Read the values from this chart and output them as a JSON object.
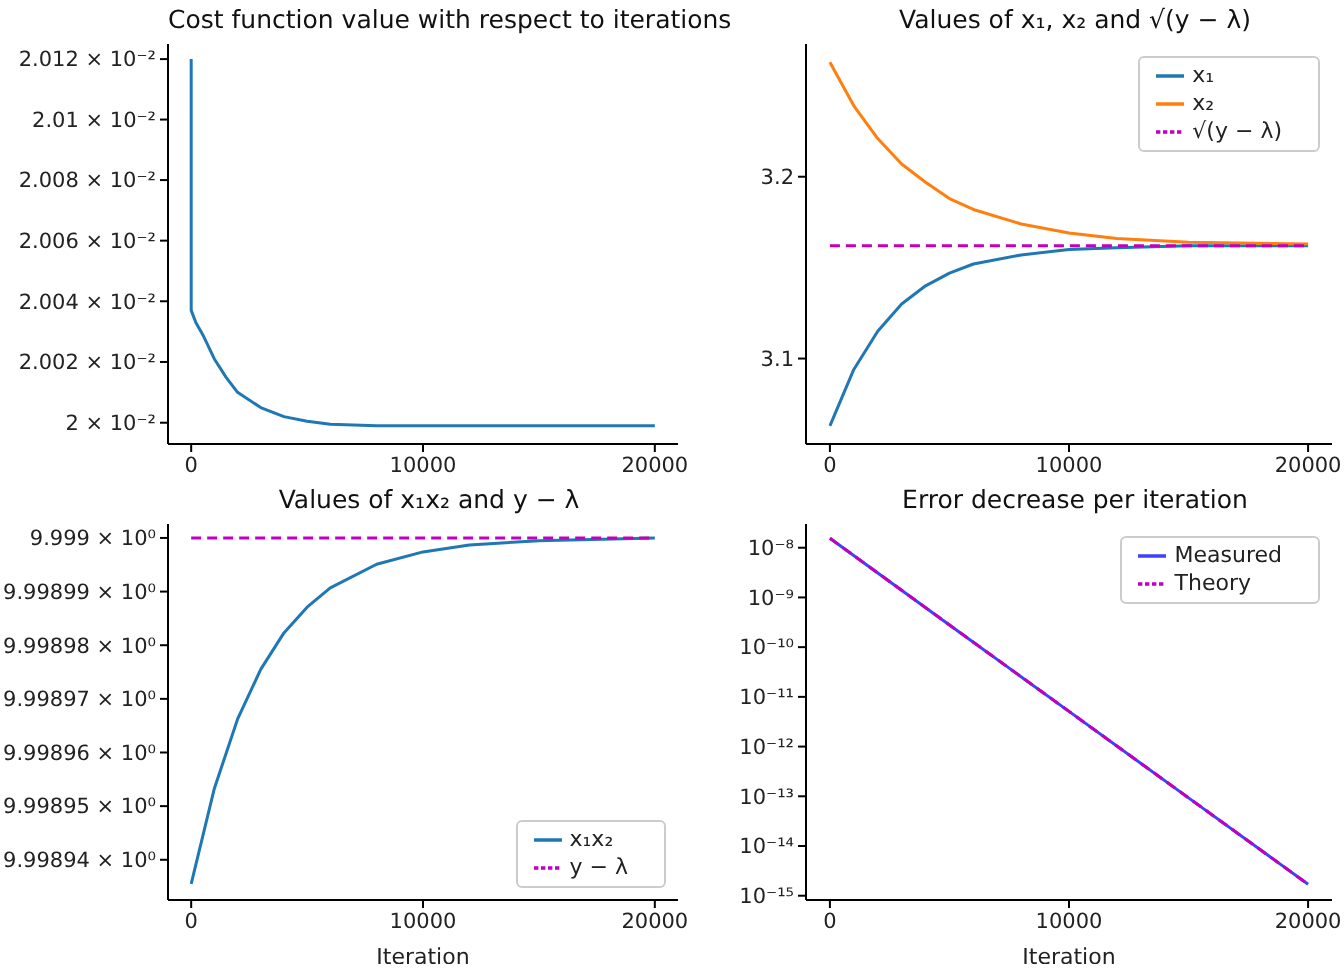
{
  "chart_data": [
    {
      "type": "line",
      "title": "Cost function value with respect to iterations",
      "log": "y",
      "xlim": [
        -1000,
        21000
      ],
      "xticks": [
        0,
        10000,
        20000
      ],
      "ylim": [
        0.019993,
        0.020125
      ],
      "yticks": [
        {
          "value": 0.02,
          "label": "2 × 10⁻²"
        },
        {
          "value": 0.02002,
          "label": "2.002 × 10⁻²"
        },
        {
          "value": 0.02004,
          "label": "2.004 × 10⁻²"
        },
        {
          "value": 0.02006,
          "label": "2.006 × 10⁻²"
        },
        {
          "value": 0.02008,
          "label": "2.008 × 10⁻²"
        },
        {
          "value": 0.0201,
          "label": "2.01 × 10⁻²"
        },
        {
          "value": 0.02012,
          "label": "2.012 × 10⁻²"
        }
      ],
      "x": [
        0,
        1,
        200,
        500,
        1000,
        1500,
        2000,
        3000,
        4000,
        5000,
        6000,
        8000,
        10000,
        15000,
        20000
      ],
      "series": [
        {
          "color": "#1f77b4",
          "values": [
            0.02012,
            0.020037,
            0.020033,
            0.020029,
            0.020021,
            0.020015,
            0.02001,
            0.020005,
            0.020002,
            0.0200005,
            0.0199995,
            0.019999,
            0.019999,
            0.019999,
            0.019999
          ]
        }
      ]
    },
    {
      "type": "line",
      "title": "Values of x₁, x₂ and √(y − λ)",
      "legend": "top right",
      "xlim": [
        -1000,
        21000
      ],
      "xticks": [
        0,
        10000,
        20000
      ],
      "ylim": [
        3.053,
        3.273
      ],
      "yticks": [
        3.1,
        3.2
      ],
      "x": [
        0,
        1000,
        2000,
        3000,
        4000,
        5000,
        6000,
        8000,
        10000,
        12000,
        15000,
        20000
      ],
      "series": [
        {
          "name": "x₁",
          "color": "#1f77b4",
          "values": [
            3.063,
            3.094,
            3.115,
            3.13,
            3.14,
            3.147,
            3.152,
            3.157,
            3.16,
            3.161,
            3.162,
            3.162
          ]
        },
        {
          "name": "x₂",
          "color": "#ff7f0e",
          "values": [
            3.263,
            3.239,
            3.221,
            3.207,
            3.197,
            3.188,
            3.182,
            3.174,
            3.169,
            3.166,
            3.164,
            3.163
          ]
        },
        {
          "name": "√(y − λ)",
          "color": "#bf00bf",
          "line_style": "dashed",
          "values": [
            3.162,
            3.162,
            3.162,
            3.162,
            3.162,
            3.162,
            3.162,
            3.162,
            3.162,
            3.162,
            3.162,
            3.162
          ]
        }
      ]
    },
    {
      "type": "line",
      "title": "Values of x₁x₂ and y − λ",
      "xlabel": "Iteration",
      "legend": "bottom right",
      "log": "y",
      "xlim": [
        -1000,
        21000
      ],
      "xticks": [
        0,
        10000,
        20000
      ],
      "ylim": [
        9.9989325,
        9.9990026
      ],
      "yticks": [
        {
          "value": 9.99894,
          "label": "9.99894 × 10⁰"
        },
        {
          "value": 9.99895,
          "label": "9.99895 × 10⁰"
        },
        {
          "value": 9.99896,
          "label": "9.99896 × 10⁰"
        },
        {
          "value": 9.99897,
          "label": "9.99897 × 10⁰"
        },
        {
          "value": 9.99898,
          "label": "9.99898 × 10⁰"
        },
        {
          "value": 9.99899,
          "label": "9.99899 × 10⁰"
        },
        {
          "value": 9.999,
          "label": "9.999 × 10⁰"
        }
      ],
      "x": [
        0,
        1000,
        2000,
        3000,
        4000,
        5000,
        6000,
        8000,
        10000,
        12000,
        15000,
        20000
      ],
      "series": [
        {
          "name": "x₁x₂",
          "color": "#1f77b4",
          "values": [
            9.9989355,
            9.9989533,
            9.9989662,
            9.9989755,
            9.9989823,
            9.9989871,
            9.9989907,
            9.9989951,
            9.9989974,
            9.9989987,
            9.9989995,
            9.999
          ]
        },
        {
          "name": "y − λ",
          "color": "#bf00bf",
          "line_style": "dashed",
          "values": [
            9.999,
            9.999,
            9.999,
            9.999,
            9.999,
            9.999,
            9.999,
            9.999,
            9.999,
            9.999,
            9.999,
            9.999
          ]
        }
      ]
    },
    {
      "type": "line",
      "title": "Error decrease per iteration",
      "xlabel": "Iteration",
      "legend": "top right",
      "log": "y",
      "xlim": [
        -1000,
        21000
      ],
      "xticks": [
        0,
        10000,
        20000
      ],
      "ylim": [
        8.2e-16,
        3e-08
      ],
      "yticks": [
        {
          "value": 1e-15,
          "label": "10⁻¹⁵"
        },
        {
          "value": 1e-14,
          "label": "10⁻¹⁴"
        },
        {
          "value": 1e-13,
          "label": "10⁻¹³"
        },
        {
          "value": 1e-12,
          "label": "10⁻¹²"
        },
        {
          "value": 1e-11,
          "label": "10⁻¹¹"
        },
        {
          "value": 1e-10,
          "label": "10⁻¹⁰"
        },
        {
          "value": 1e-09,
          "label": "10⁻⁹"
        },
        {
          "value": 1e-08,
          "label": "10⁻⁸"
        }
      ],
      "x": [
        0,
        5000,
        10000,
        15000,
        20000
      ],
      "series": [
        {
          "name": "Measured",
          "color": "#4040ff",
          "values": [
            1.55e-08,
            2.8e-10,
            5.1e-12,
            9.3e-14,
            1.7e-15
          ]
        },
        {
          "name": "Theory",
          "color": "#bf00bf",
          "line_style": "dashed",
          "values": [
            1.55e-08,
            2.8e-10,
            5.1e-12,
            9.3e-14,
            1.7e-15
          ]
        }
      ]
    }
  ]
}
